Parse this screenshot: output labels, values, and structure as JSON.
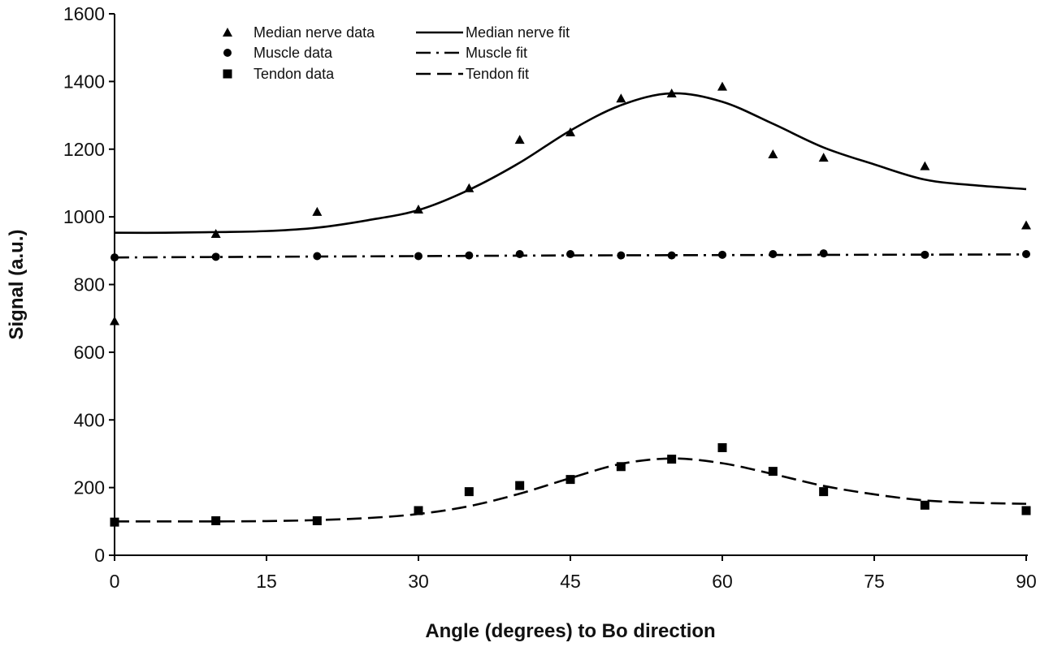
{
  "chart_data": {
    "type": "scatter",
    "xlabel": "Angle (degrees) to Bo direction",
    "ylabel": "Signal (a.u.)",
    "xlim": [
      0,
      90
    ],
    "ylim": [
      0,
      1600
    ],
    "xticks": [
      0,
      15,
      30,
      45,
      60,
      75,
      90
    ],
    "yticks": [
      0,
      200,
      400,
      600,
      800,
      1000,
      1200,
      1400,
      1600
    ],
    "grid": false,
    "legend_position": "top-left",
    "series": [
      {
        "name": "Median nerve data",
        "kind": "points",
        "marker": "triangle",
        "color": "#000000",
        "x": [
          0,
          10,
          20,
          30,
          35,
          40,
          45,
          50,
          55,
          60,
          65,
          70,
          80,
          90
        ],
        "y": [
          692,
          950,
          1015,
          1022,
          1085,
          1228,
          1250,
          1350,
          1365,
          1385,
          1185,
          1175,
          1150,
          975
        ]
      },
      {
        "name": "Median nerve fit",
        "kind": "line",
        "dash": "solid",
        "color": "#000000",
        "x": [
          0,
          5,
          10,
          15,
          20,
          25,
          30,
          35,
          40,
          45,
          50,
          55,
          60,
          65,
          70,
          75,
          80,
          85,
          90
        ],
        "y": [
          953,
          953,
          955,
          958,
          968,
          990,
          1020,
          1080,
          1160,
          1255,
          1330,
          1365,
          1340,
          1275,
          1205,
          1155,
          1110,
          1093,
          1082
        ]
      },
      {
        "name": "Muscle data",
        "kind": "points",
        "marker": "circle",
        "color": "#000000",
        "x": [
          0,
          10,
          20,
          30,
          35,
          40,
          45,
          50,
          55,
          60,
          65,
          70,
          80,
          90
        ],
        "y": [
          880,
          882,
          884,
          884,
          886,
          890,
          890,
          886,
          886,
          888,
          890,
          892,
          888,
          890
        ]
      },
      {
        "name": "Muscle fit",
        "kind": "line",
        "dash": "dash-dot",
        "color": "#000000",
        "x": [
          0,
          15,
          30,
          45,
          60,
          75,
          90
        ],
        "y": [
          880,
          882,
          884,
          886,
          887,
          888,
          889
        ]
      },
      {
        "name": "Tendon data",
        "kind": "points",
        "marker": "square",
        "color": "#000000",
        "x": [
          0,
          10,
          20,
          30,
          35,
          40,
          45,
          50,
          55,
          60,
          65,
          70,
          80,
          90
        ],
        "y": [
          98,
          102,
          102,
          132,
          188,
          206,
          224,
          262,
          284,
          318,
          248,
          188,
          148,
          132
        ]
      },
      {
        "name": "Tendon fit",
        "kind": "line",
        "dash": "dashed",
        "color": "#000000",
        "x": [
          0,
          5,
          10,
          15,
          20,
          25,
          30,
          35,
          40,
          45,
          50,
          55,
          60,
          65,
          70,
          75,
          80,
          85,
          90
        ],
        "y": [
          100,
          100,
          100,
          101,
          104,
          110,
          122,
          145,
          182,
          228,
          270,
          286,
          272,
          240,
          205,
          180,
          162,
          155,
          152
        ]
      }
    ]
  }
}
